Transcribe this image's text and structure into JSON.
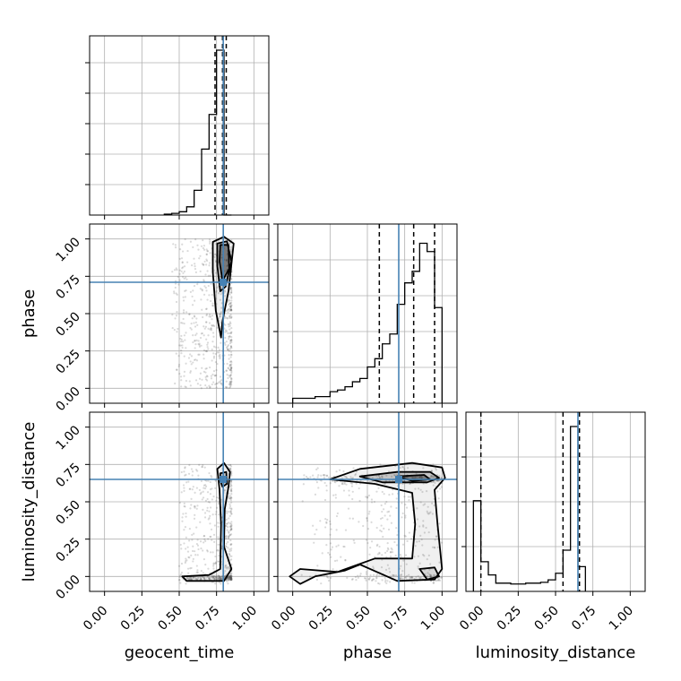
{
  "chart_data": {
    "type": "corner",
    "parameters": [
      "geocent_time",
      "phase",
      "luminosity_distance"
    ],
    "tick_values": [
      0.0,
      0.25,
      0.5,
      0.75,
      1.0
    ],
    "tick_labels": [
      "0.00",
      "0.25",
      "0.50",
      "0.75",
      "1.00"
    ],
    "axis_range": [
      -0.1,
      1.1
    ],
    "grid": true,
    "colors": {
      "truth": "#4682b4",
      "hist": "#000000",
      "quantile": "#000000",
      "contour": "#000000",
      "points": "#555555"
    },
    "truths": {
      "geocent_time": 0.795,
      "phase": 0.71,
      "luminosity_distance": 0.65
    },
    "diag": [
      {
        "param": "geocent_time",
        "bin_edges": [
          0.4,
          0.45,
          0.5,
          0.55,
          0.6,
          0.65,
          0.7,
          0.75,
          0.8,
          0.85
        ],
        "counts": [
          0.005,
          0.01,
          0.02,
          0.05,
          0.15,
          0.4,
          0.61,
          1.0,
          0.0
        ],
        "quantiles": [
          0.74,
          0.79,
          0.815
        ],
        "ytick_fractions": [
          0.17,
          0.34,
          0.51,
          0.68,
          0.85
        ]
      },
      {
        "param": "phase",
        "bin_edges": [
          0.0,
          0.05,
          0.1,
          0.15,
          0.2,
          0.25,
          0.3,
          0.35,
          0.4,
          0.45,
          0.5,
          0.55,
          0.6,
          0.65,
          0.7,
          0.75,
          0.8,
          0.85,
          0.9,
          0.95,
          1.0
        ],
        "counts": [
          0.03,
          0.03,
          0.03,
          0.04,
          0.04,
          0.07,
          0.08,
          0.1,
          0.13,
          0.15,
          0.22,
          0.27,
          0.36,
          0.42,
          0.6,
          0.73,
          0.8,
          0.97,
          0.92,
          0.58
        ],
        "quantiles": [
          0.58,
          0.81,
          0.95
        ],
        "ytick_fractions": [
          0.2,
          0.4,
          0.6,
          0.8,
          1.0
        ]
      },
      {
        "param": "luminosity_distance",
        "bin_edges": [
          -0.05,
          0.0,
          0.05,
          0.1,
          0.15,
          0.2,
          0.25,
          0.3,
          0.35,
          0.4,
          0.45,
          0.5,
          0.55,
          0.6,
          0.65,
          0.7
        ],
        "counts": [
          0.55,
          0.18,
          0.1,
          0.05,
          0.05,
          0.045,
          0.045,
          0.05,
          0.05,
          0.055,
          0.07,
          0.11,
          0.25,
          1.0,
          0.15
        ],
        "quantiles": [
          0.0,
          0.55,
          0.66
        ],
        "ytick_fractions": [
          0.25,
          0.5,
          0.75
        ]
      }
    ],
    "scatter_panels": [
      {
        "x_param": "geocent_time",
        "y_param": "phase",
        "contours": [
          [
            [
              0.725,
              0.98
            ],
            [
              0.8,
              1.015
            ],
            [
              0.865,
              0.97
            ],
            [
              0.83,
              0.65
            ],
            [
              0.79,
              0.45
            ],
            [
              0.78,
              0.34
            ],
            [
              0.745,
              0.52
            ],
            [
              0.725,
              0.78
            ]
          ],
          [
            [
              0.755,
              0.97
            ],
            [
              0.82,
              0.985
            ],
            [
              0.85,
              0.85
            ],
            [
              0.81,
              0.68
            ],
            [
              0.775,
              0.65
            ],
            [
              0.755,
              0.82
            ]
          ],
          [
            [
              0.775,
              0.96
            ],
            [
              0.83,
              0.96
            ],
            [
              0.835,
              0.8
            ],
            [
              0.79,
              0.72
            ],
            [
              0.77,
              0.85
            ]
          ]
        ],
        "scatter_region": {
          "x": [
            0.45,
            0.85
          ],
          "y": [
            0.0,
            1.0
          ]
        }
      },
      {
        "x_param": "geocent_time",
        "y_param": "luminosity_distance",
        "contours": [
          [
            [
              0.755,
              0.72
            ],
            [
              0.8,
              0.76
            ],
            [
              0.84,
              0.7
            ],
            [
              0.83,
              0.6
            ],
            [
              0.805,
              0.45
            ],
            [
              0.8,
              0.2
            ],
            [
              0.85,
              0.05
            ],
            [
              0.8,
              -0.03
            ],
            [
              0.55,
              -0.03
            ],
            [
              0.52,
              0.0
            ],
            [
              0.7,
              0.01
            ],
            [
              0.775,
              0.05
            ],
            [
              0.78,
              0.35
            ],
            [
              0.77,
              0.58
            ]
          ],
          [
            [
              0.775,
              0.69
            ],
            [
              0.815,
              0.7
            ],
            [
              0.82,
              0.62
            ],
            [
              0.79,
              0.6
            ],
            [
              0.775,
              0.64
            ]
          ]
        ],
        "scatter_region": {
          "x": [
            0.5,
            0.85
          ],
          "y": [
            -0.05,
            0.75
          ]
        }
      },
      {
        "x_param": "phase",
        "y_param": "luminosity_distance",
        "contours": [
          [
            [
              0.25,
              0.65
            ],
            [
              0.45,
              0.72
            ],
            [
              0.8,
              0.76
            ],
            [
              1.0,
              0.73
            ],
            [
              1.02,
              0.66
            ],
            [
              0.95,
              0.58
            ],
            [
              0.97,
              0.35
            ],
            [
              1.0,
              0.05
            ],
            [
              0.95,
              -0.02
            ],
            [
              0.7,
              -0.03
            ],
            [
              0.45,
              0.08
            ],
            [
              0.35,
              0.04
            ],
            [
              0.15,
              0.0
            ],
            [
              0.05,
              -0.05
            ],
            [
              -0.02,
              0.0
            ],
            [
              0.05,
              0.05
            ],
            [
              0.3,
              0.03
            ],
            [
              0.55,
              0.12
            ],
            [
              0.8,
              0.12
            ],
            [
              0.82,
              0.35
            ],
            [
              0.8,
              0.56
            ],
            [
              0.55,
              0.62
            ]
          ],
          [
            [
              0.45,
              0.67
            ],
            [
              0.7,
              0.7
            ],
            [
              0.92,
              0.7
            ],
            [
              0.98,
              0.66
            ],
            [
              0.9,
              0.63
            ],
            [
              0.6,
              0.63
            ]
          ],
          [
            [
              0.7,
              0.67
            ],
            [
              0.88,
              0.68
            ],
            [
              0.92,
              0.65
            ],
            [
              0.8,
              0.64
            ]
          ],
          [
            [
              0.85,
              0.05
            ],
            [
              0.95,
              0.06
            ],
            [
              0.98,
              0.0
            ],
            [
              0.9,
              -0.02
            ]
          ]
        ],
        "scatter_region": {
          "x": [
            0.0,
            1.0
          ],
          "y": [
            -0.05,
            0.75
          ]
        }
      }
    ]
  }
}
